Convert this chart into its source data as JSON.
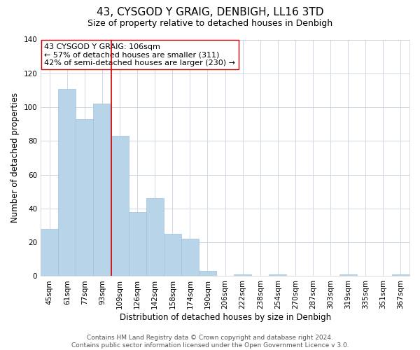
{
  "title": "43, CYSGOD Y GRAIG, DENBIGH, LL16 3TD",
  "subtitle": "Size of property relative to detached houses in Denbigh",
  "xlabel": "Distribution of detached houses by size in Denbigh",
  "ylabel": "Number of detached properties",
  "footer_line1": "Contains HM Land Registry data © Crown copyright and database right 2024.",
  "footer_line2": "Contains public sector information licensed under the Open Government Licence v 3.0.",
  "categories": [
    "45sqm",
    "61sqm",
    "77sqm",
    "93sqm",
    "109sqm",
    "126sqm",
    "142sqm",
    "158sqm",
    "174sqm",
    "190sqm",
    "206sqm",
    "222sqm",
    "238sqm",
    "254sqm",
    "270sqm",
    "287sqm",
    "303sqm",
    "319sqm",
    "335sqm",
    "351sqm",
    "367sqm"
  ],
  "values": [
    28,
    111,
    93,
    102,
    83,
    38,
    46,
    25,
    22,
    3,
    0,
    1,
    0,
    1,
    0,
    0,
    0,
    1,
    0,
    0,
    1
  ],
  "bar_color": "#b8d4e8",
  "bar_edge_color": "#a0c0dc",
  "highlight_bar_index": 4,
  "highlight_line_color": "#cc0000",
  "annotation_line1": "43 CYSGOD Y GRAIG: 106sqm",
  "annotation_line2": "← 57% of detached houses are smaller (311)",
  "annotation_line3": "42% of semi-detached houses are larger (230) →",
  "ylim": [
    0,
    140
  ],
  "yticks": [
    0,
    20,
    40,
    60,
    80,
    100,
    120,
    140
  ],
  "background_color": "#ffffff",
  "grid_color": "#d0d8e8",
  "title_fontsize": 11,
  "subtitle_fontsize": 9,
  "axis_label_fontsize": 8.5,
  "tick_fontsize": 7.5,
  "annotation_fontsize": 8,
  "footer_fontsize": 6.5
}
